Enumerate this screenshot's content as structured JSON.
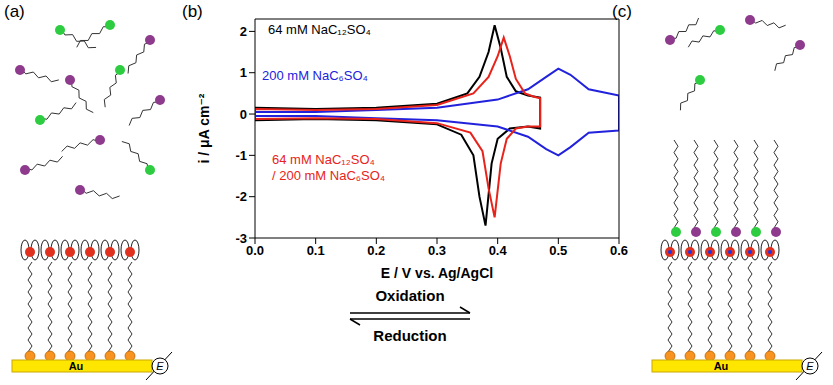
{
  "panel_labels": [
    "(a)",
    "(b)",
    "(c)"
  ],
  "electrode": {
    "label": "Au",
    "potential": "E"
  },
  "reaction": {
    "forward": "Oxidation",
    "reverse": "Reduction"
  },
  "chart_data": {
    "type": "line",
    "x_label": "E / V vs. Ag/AgCl",
    "y_label": "i / μA cm⁻²",
    "xlim": [
      0,
      0.6
    ],
    "xticks": [
      {
        "value": 0,
        "label": "0.0"
      },
      0.1,
      0.2,
      0.3,
      0.4,
      0.5,
      0.6
    ],
    "ylim": [
      -3,
      2.3
    ],
    "yticks": [
      -3,
      -2,
      -1,
      0,
      1,
      2
    ],
    "series": [
      {
        "name": "64 mM NaC₁₂SO₄",
        "color": "#000000",
        "x": [
          0,
          0.1,
          0.2,
          0.3,
          0.35,
          0.37,
          0.385,
          0.395,
          0.405,
          0.415,
          0.43,
          0.45,
          0.47,
          0.47,
          0.45,
          0.42,
          0.4,
          0.39,
          0.38,
          0.37,
          0.36,
          0.34,
          0.3,
          0.2,
          0.1,
          0,
          0
        ],
        "values": [
          0.15,
          0.12,
          0.15,
          0.25,
          0.5,
          0.9,
          1.5,
          2.15,
          1.6,
          0.9,
          0.55,
          0.45,
          0.4,
          -0.35,
          -0.3,
          -0.35,
          -0.6,
          -1.2,
          -2.7,
          -2.0,
          -1.0,
          -0.5,
          -0.25,
          -0.15,
          -0.12,
          -0.15,
          0.15
        ]
      },
      {
        "name": "200 mM NaC₆SO₄",
        "color": "#2222dd",
        "x": [
          0,
          0.1,
          0.2,
          0.3,
          0.4,
          0.45,
          0.48,
          0.5,
          0.52,
          0.55,
          0.6,
          0.6,
          0.55,
          0.52,
          0.5,
          0.48,
          0.45,
          0.4,
          0.3,
          0.2,
          0.1,
          0
        ],
        "values": [
          0.05,
          0.05,
          0.1,
          0.15,
          0.35,
          0.6,
          0.9,
          1.1,
          0.95,
          0.6,
          0.45,
          -0.4,
          -0.45,
          -0.8,
          -1.0,
          -0.85,
          -0.55,
          -0.3,
          -0.15,
          -0.1,
          -0.05,
          -0.05
        ]
      },
      {
        "name": "64 mM NaC₁₂SO₄ / 200 mM NaC₆SO₄",
        "color": "#e8231b",
        "x": [
          0,
          0.1,
          0.2,
          0.3,
          0.36,
          0.385,
          0.4,
          0.41,
          0.42,
          0.43,
          0.445,
          0.46,
          0.47,
          0.47,
          0.45,
          0.43,
          0.415,
          0.405,
          0.395,
          0.385,
          0.375,
          0.355,
          0.3,
          0.2,
          0.1,
          0,
          0
        ],
        "values": [
          0.12,
          0.1,
          0.12,
          0.22,
          0.5,
          0.9,
          1.4,
          1.85,
          1.4,
          0.85,
          0.5,
          0.42,
          0.38,
          -0.3,
          -0.3,
          -0.35,
          -0.6,
          -1.2,
          -2.5,
          -1.8,
          -0.9,
          -0.45,
          -0.22,
          -0.12,
          -0.1,
          -0.12,
          0.12
        ]
      }
    ]
  }
}
